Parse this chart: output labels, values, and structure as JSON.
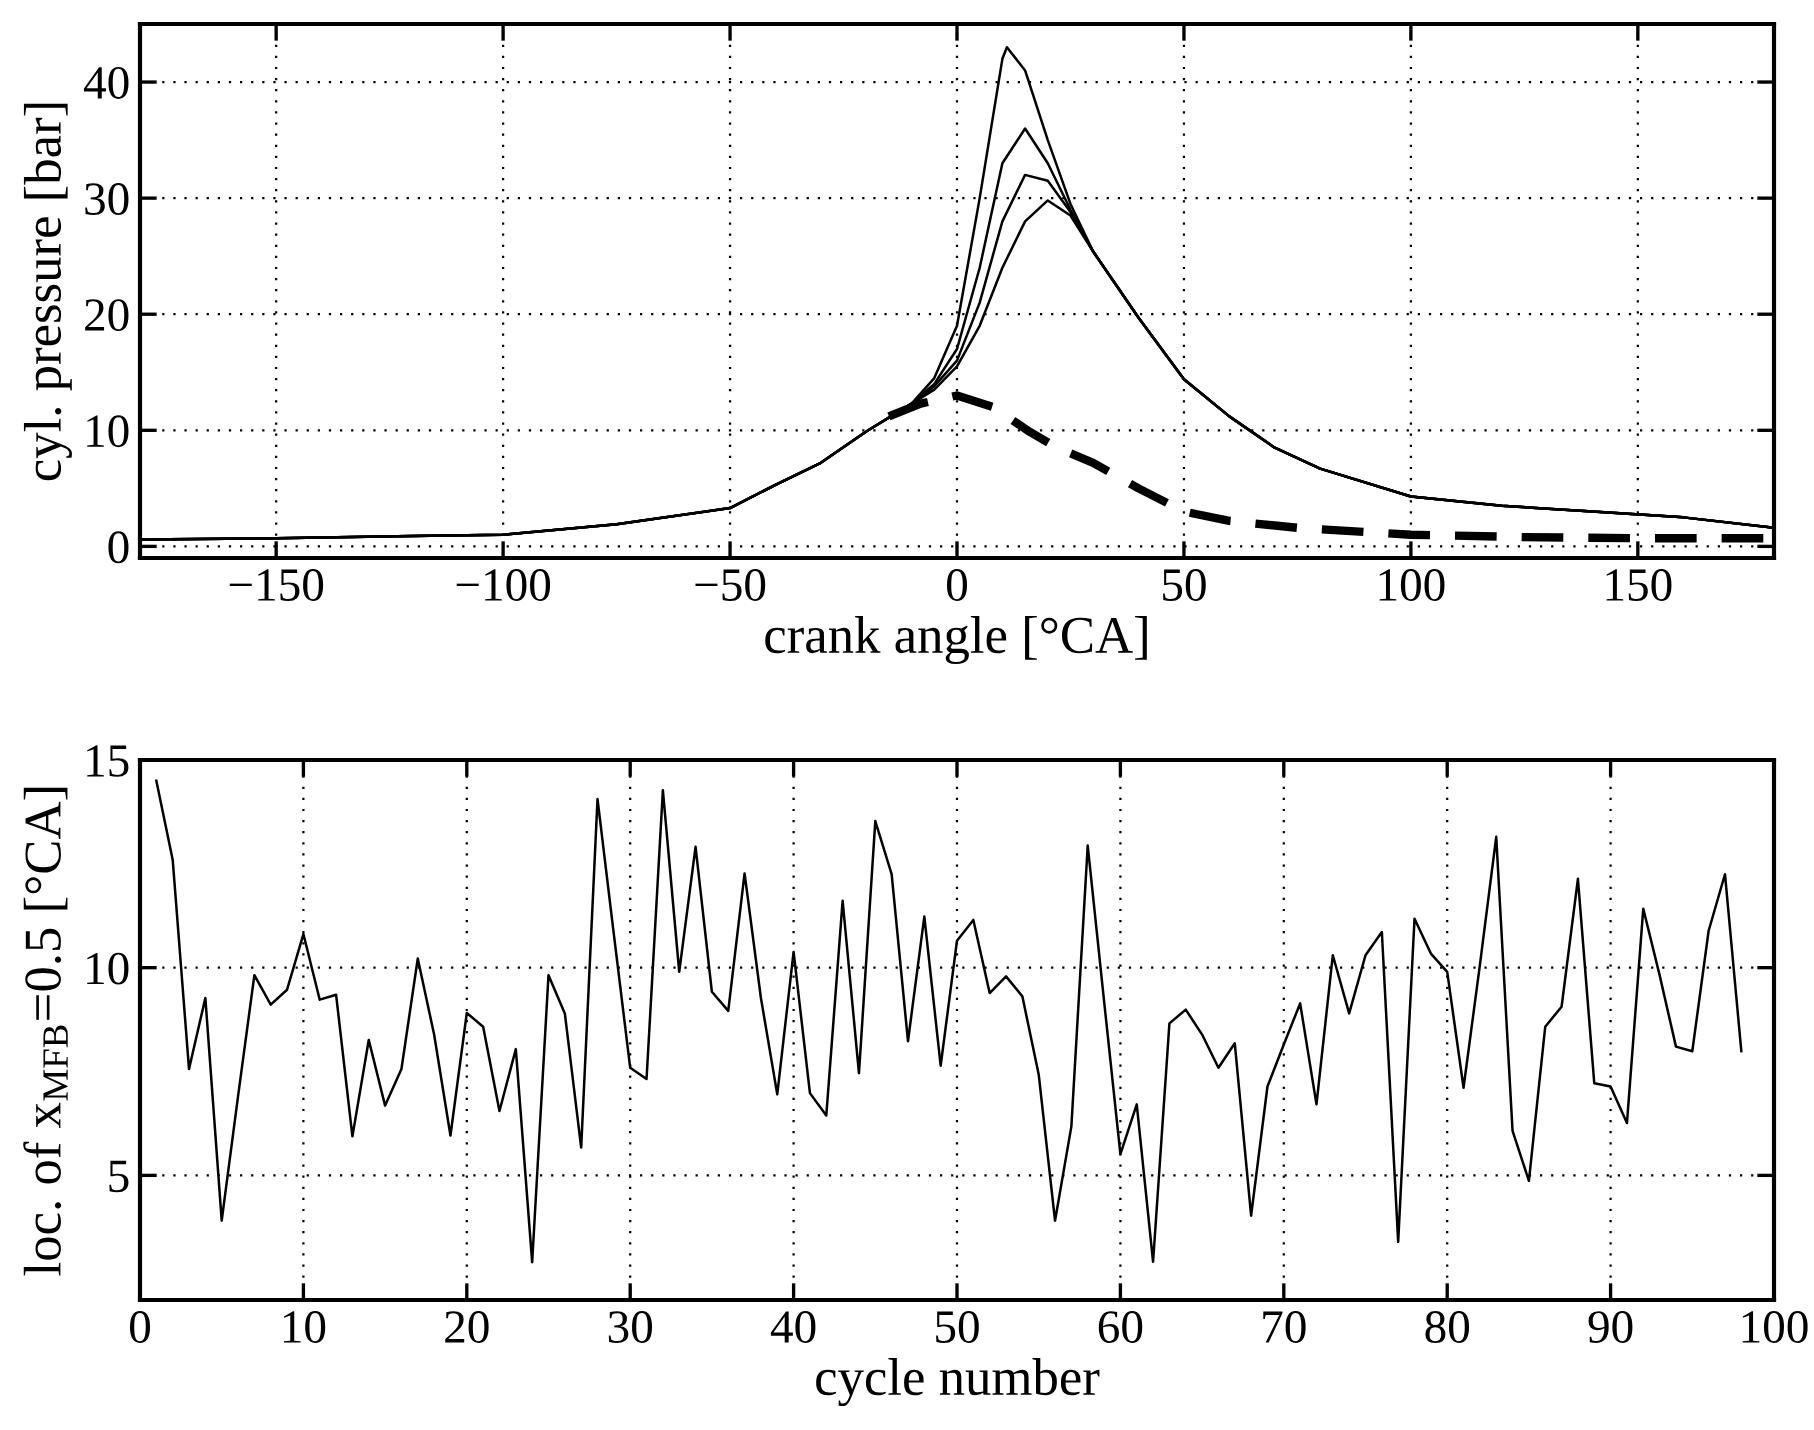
{
  "chart_data": [
    {
      "type": "line",
      "xlabel": "crank angle [°CA]",
      "ylabel": "cyl. pressure [bar]",
      "xlim": [
        -180,
        180
      ],
      "ylim": [
        -1,
        45
      ],
      "xticks": [
        -150,
        -100,
        -50,
        0,
        50,
        100,
        150
      ],
      "yticks": [
        0,
        10,
        20,
        30,
        40
      ],
      "grid": true,
      "marker": "none",
      "series": [
        {
          "color": "#000000",
          "line_style": "solid",
          "x": [
            -180,
            -150,
            -120,
            -100,
            -75,
            -50,
            -40,
            -30,
            -20,
            -10,
            -5,
            0,
            5,
            10,
            11,
            15,
            20,
            25,
            30,
            40,
            50,
            60,
            70,
            80,
            100,
            120,
            140,
            160,
            180
          ],
          "values": [
            0.6,
            0.7,
            0.9,
            1.0,
            1.9,
            3.3,
            5.3,
            7.2,
            9.9,
            12.3,
            14.5,
            19,
            30,
            42,
            43,
            41,
            35,
            29.5,
            25.4,
            19.7,
            14.4,
            11.2,
            8.5,
            6.7,
            4.3,
            3.5,
            3.0,
            2.5,
            1.6
          ]
        },
        {
          "color": "#000000",
          "line_style": "solid",
          "x": [
            -180,
            -150,
            -120,
            -100,
            -75,
            -50,
            -40,
            -30,
            -20,
            -10,
            -5,
            0,
            5,
            10,
            15,
            20,
            25,
            30,
            40,
            50,
            60,
            70,
            80,
            100,
            120,
            140,
            160,
            180
          ],
          "values": [
            0.6,
            0.7,
            0.9,
            1.0,
            1.9,
            3.3,
            5.3,
            7.2,
            9.9,
            12.3,
            14,
            17,
            24,
            33,
            36,
            33,
            29,
            25.4,
            19.7,
            14.4,
            11.2,
            8.5,
            6.7,
            4.3,
            3.5,
            3.0,
            2.5,
            1.6
          ]
        },
        {
          "color": "#000000",
          "line_style": "solid",
          "x": [
            -180,
            -150,
            -120,
            -100,
            -75,
            -50,
            -40,
            -30,
            -20,
            -10,
            -5,
            0,
            5,
            10,
            15,
            20,
            25,
            30,
            40,
            50,
            60,
            70,
            80,
            100,
            120,
            140,
            160,
            180
          ],
          "values": [
            0.6,
            0.7,
            0.9,
            1.0,
            1.9,
            3.3,
            5.3,
            7.2,
            9.9,
            12.3,
            13.8,
            16,
            21,
            28,
            32,
            31.5,
            28.8,
            25.4,
            19.7,
            14.4,
            11.2,
            8.5,
            6.7,
            4.3,
            3.5,
            3.0,
            2.5,
            1.6
          ]
        },
        {
          "color": "#000000",
          "line_style": "solid",
          "x": [
            -180,
            -150,
            -120,
            -100,
            -75,
            -50,
            -40,
            -30,
            -20,
            -10,
            -5,
            0,
            5,
            10,
            15,
            20,
            25,
            30,
            40,
            50,
            60,
            70,
            80,
            100,
            120,
            140,
            160,
            180
          ],
          "values": [
            0.6,
            0.7,
            0.9,
            1.0,
            1.9,
            3.3,
            5.3,
            7.2,
            9.9,
            12.3,
            13.5,
            15.5,
            19,
            24,
            28,
            29.8,
            28.5,
            25.4,
            19.7,
            14.4,
            11.2,
            8.5,
            6.7,
            4.3,
            3.5,
            3.0,
            2.5,
            1.6
          ]
        },
        {
          "color": "#000000",
          "line_style": "dashed",
          "x": [
            -15,
            -8,
            0,
            8,
            15.5,
            22,
            30,
            40,
            50,
            60,
            75,
            100,
            125,
            150,
            180
          ],
          "values": [
            11.2,
            12.3,
            13.0,
            12.0,
            10.0,
            8.5,
            7.2,
            5.0,
            3.0,
            2.2,
            1.6,
            1.0,
            0.8,
            0.7,
            0.7
          ]
        }
      ]
    },
    {
      "type": "line",
      "xlabel": "cycle number",
      "ylabel": "loc. of x$_{MFB}$=0.5 [°CA]",
      "xlim": [
        0,
        100
      ],
      "ylim": [
        2,
        15
      ],
      "xticks": [
        0,
        10,
        20,
        30,
        40,
        50,
        60,
        70,
        80,
        90,
        100
      ],
      "yticks": [
        5,
        10,
        15
      ],
      "grid": true,
      "marker": "none",
      "series": [
        {
          "color": "#000000",
          "line_style": "solid",
          "x": [
            1,
            2,
            3,
            4,
            5,
            6,
            7,
            8,
            9,
            10,
            11,
            12,
            13,
            14,
            15,
            16,
            17,
            18,
            19,
            20,
            21,
            22,
            23,
            24,
            25,
            26,
            27,
            28,
            29,
            30,
            31,
            32,
            33,
            34,
            35,
            36,
            37,
            38,
            39,
            40,
            41,
            42,
            43,
            44,
            45,
            46,
            47,
            48,
            49,
            50,
            51,
            52,
            53,
            54,
            55,
            56,
            57,
            58,
            59,
            60,
            61,
            62,
            63,
            64,
            65,
            66,
            67,
            68,
            69,
            70,
            71,
            72,
            73,
            74,
            75,
            76,
            77,
            78,
            79,
            80,
            81,
            82,
            83,
            84,
            85,
            86,
            87,
            88,
            89,
            90,
            91,
            92,
            93,
            94,
            95,
            96,
            97,
            98
          ],
          "values": [
            14.5,
            12.6,
            7.56,
            9.27,
            3.91,
            6.9,
            9.82,
            9.11,
            9.47,
            10.81,
            9.23,
            9.35,
            5.94,
            8.26,
            6.68,
            7.56,
            10.22,
            8.39,
            5.96,
            8.91,
            8.58,
            6.55,
            8.04,
            2.91,
            9.82,
            8.9,
            5.67,
            14.06,
            10.8,
            7.59,
            7.32,
            14.27,
            9.9,
            12.91,
            9.42,
            8.96,
            12.27,
            9.27,
            6.95,
            10.38,
            6.98,
            6.44,
            11.61,
            7.46,
            13.53,
            12.25,
            8.23,
            11.23,
            7.64,
            10.65,
            11.15,
            9.39,
            9.79,
            9.31,
            7.43,
            3.91,
            6.18,
            12.94,
            9.2,
            5.51,
            6.71,
            2.92,
            8.66,
            8.99,
            8.39,
            7.59,
            8.18,
            4.03,
            7.14,
            8.15,
            9.14,
            6.71,
            10.3,
            8.9,
            10.3,
            10.86,
            3.4,
            11.18,
            10.34,
            9.9,
            7.11,
            10.06,
            13.15,
            6.07,
            4.87,
            8.58,
            9.06,
            12.14,
            7.22,
            7.14,
            6.26,
            11.42,
            9.82,
            8.1,
            7.99,
            10.89,
            12.25,
            7.99
          ]
        }
      ]
    }
  ]
}
